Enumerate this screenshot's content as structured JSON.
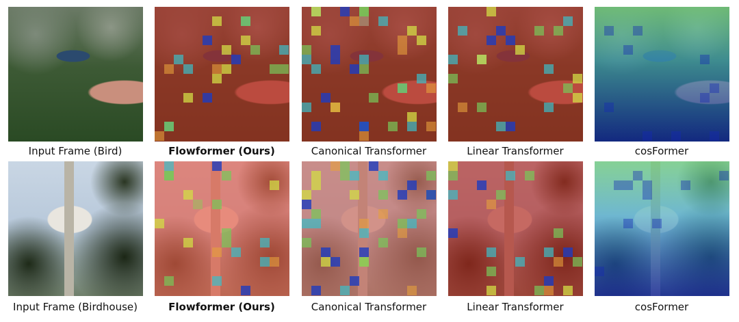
{
  "figure": {
    "rows": [
      {
        "name": "bird",
        "captions": [
          "Input Frame (Bird)",
          "Flowformer (Ours)",
          "Canonical Transformer",
          "Linear Transformer",
          "cosFormer"
        ]
      },
      {
        "name": "birdhouse",
        "captions": [
          "Input Frame (Birdhouse)",
          "Flowformer (Ours)",
          "Canonical Transformer",
          "Linear Transformer",
          "cosFormer"
        ]
      }
    ],
    "colors": {
      "heat_low": "#b3261e",
      "heat_mid": "#d4e04a",
      "heat_high": "#1a2fb0",
      "cos_top": "#6fcf7a",
      "cos_bottom": "#0b1e9e"
    }
  }
}
